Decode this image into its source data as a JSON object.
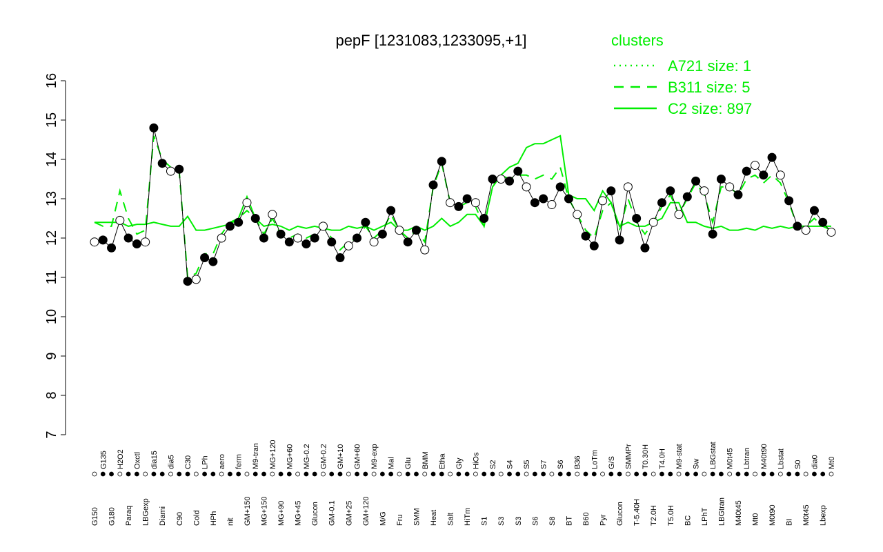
{
  "chart_data": {
    "type": "line",
    "title": "pepF [1231083,1233095,+1]",
    "legend_title": "clusters",
    "ylim": [
      7,
      16
    ],
    "yticks": [
      7,
      8,
      9,
      10,
      11,
      12,
      13,
      14,
      15,
      16
    ],
    "categories": [
      "G150",
      "G135",
      "G180",
      "H2O2",
      "Paraq",
      "Oxctl",
      "LBGexp",
      "dia15",
      "Diami",
      "dia5",
      "C90",
      "C30",
      "Cold",
      "LPh",
      "HPh",
      "aero",
      "nit",
      "ferm",
      "GM+150",
      "M9-tran",
      "MG+150",
      "MG+120",
      "MG+90",
      "MG+60",
      "MG+45",
      "MG-0.2",
      "Glucon",
      "GM-0.2",
      "GM-0.1",
      "GM+10",
      "GM+25",
      "GM+60",
      "GM+120",
      "M9-exp",
      "M/G",
      "Mal",
      "Fru",
      "Glu",
      "SMM",
      "BMM",
      "Heat",
      "Etha",
      "Salt",
      "Gly",
      "HiTm",
      "HiOs",
      "S1",
      "S2",
      "S3",
      "S4",
      "S3",
      "S5",
      "S6",
      "S7",
      "S8",
      "S6",
      "BT",
      "B36",
      "B60",
      "LoTm",
      "Pyr",
      "G/S",
      "Glucon",
      "SMMPr",
      "T-5.40H",
      "T0.30H",
      "T2.0H",
      "T4.0H",
      "T5.0H",
      "M9-stat",
      "BC",
      "Sw",
      "LPhT",
      "LBGstat",
      "LBGtran",
      "M0t45",
      "M40t45",
      "Lbtran",
      "Mt0",
      "M40t90",
      "M0t90",
      "Lbstat",
      "BI",
      "S0",
      "M0t45",
      "dia0",
      "Lbexp",
      "Mt0"
    ],
    "points": {
      "color": "#000000",
      "values": [
        11.9,
        11.95,
        11.75,
        12.45,
        12.0,
        11.85,
        11.9,
        14.8,
        13.9,
        13.7,
        13.75,
        10.9,
        10.95,
        11.5,
        11.4,
        12.0,
        12.3,
        12.4,
        12.9,
        12.5,
        12.0,
        12.6,
        12.1,
        11.9,
        12.0,
        11.85,
        12.0,
        12.3,
        11.9,
        11.5,
        11.8,
        12.0,
        12.4,
        11.9,
        12.1,
        12.7,
        12.2,
        11.9,
        12.2,
        11.7,
        13.35,
        13.95,
        12.9,
        12.8,
        13.0,
        12.9,
        12.5,
        13.5,
        13.5,
        13.45,
        13.7,
        13.3,
        12.9,
        13.0,
        12.85,
        13.3,
        13.0,
        12.6,
        12.05,
        11.8,
        12.95,
        13.2,
        11.95,
        13.3,
        12.5,
        11.75,
        12.4,
        12.9,
        13.2,
        12.6,
        13.05,
        13.45,
        13.2,
        12.1,
        13.5,
        13.3,
        13.1,
        13.7,
        13.85,
        13.6,
        14.05,
        13.6,
        12.95,
        12.3,
        12.2,
        12.7,
        12.4,
        12.15
      ]
    },
    "series": [
      {
        "name": "A721 size: 1",
        "color": "#00ee00",
        "style": "dotted"
      },
      {
        "name": "B311 size: 5",
        "color": "#00ee00",
        "style": "dashed",
        "values": [
          12.4,
          12.3,
          12.3,
          13.2,
          12.5,
          12.1,
          12.2,
          14.6,
          14.0,
          13.8,
          13.7,
          11.0,
          11.1,
          11.6,
          11.6,
          12.1,
          12.4,
          12.5,
          12.7,
          12.5,
          12.1,
          12.5,
          12.1,
          12.0,
          12.1,
          12.0,
          12.1,
          12.3,
          12.0,
          11.7,
          11.9,
          12.0,
          12.3,
          12.0,
          12.2,
          12.6,
          12.2,
          12.0,
          12.2,
          11.9,
          13.3,
          13.9,
          12.9,
          12.8,
          12.9,
          12.8,
          12.3,
          13.3,
          13.6,
          13.5,
          13.6,
          13.6,
          13.5,
          13.6,
          13.5,
          13.8,
          13.0,
          12.6,
          12.2,
          12.0,
          12.7,
          12.9,
          12.2,
          13.0,
          12.4,
          12.1,
          12.4,
          12.8,
          13.1,
          12.6,
          13.0,
          13.4,
          13.1,
          12.4,
          13.3,
          13.3,
          13.1,
          13.5,
          13.6,
          13.4,
          13.6,
          13.4,
          12.9,
          12.3,
          12.3,
          12.5,
          12.3,
          12.2
        ]
      },
      {
        "name": "C2 size: 897",
        "color": "#00ee00",
        "style": "solid",
        "values": [
          12.4,
          12.4,
          12.4,
          12.4,
          12.3,
          12.35,
          12.35,
          12.4,
          12.35,
          12.3,
          12.3,
          12.55,
          12.2,
          12.2,
          12.25,
          12.3,
          12.35,
          12.5,
          13.05,
          12.5,
          12.3,
          12.35,
          12.3,
          12.2,
          12.3,
          12.25,
          12.3,
          12.25,
          12.2,
          12.2,
          12.3,
          12.25,
          12.3,
          12.2,
          12.3,
          12.4,
          12.2,
          12.2,
          12.3,
          12.2,
          12.3,
          12.5,
          12.3,
          12.4,
          12.6,
          12.6,
          12.3,
          13.3,
          13.6,
          13.8,
          13.9,
          14.3,
          14.4,
          14.4,
          14.5,
          14.6,
          13.1,
          13.0,
          13.0,
          12.7,
          13.2,
          12.9,
          12.3,
          12.4,
          12.3,
          12.3,
          12.4,
          12.5,
          12.9,
          12.9,
          12.4,
          12.4,
          12.3,
          12.25,
          12.3,
          12.2,
          12.2,
          12.25,
          12.2,
          12.3,
          12.25,
          12.3,
          12.25,
          12.3,
          12.3,
          12.3,
          12.3,
          12.3
        ]
      }
    ]
  }
}
